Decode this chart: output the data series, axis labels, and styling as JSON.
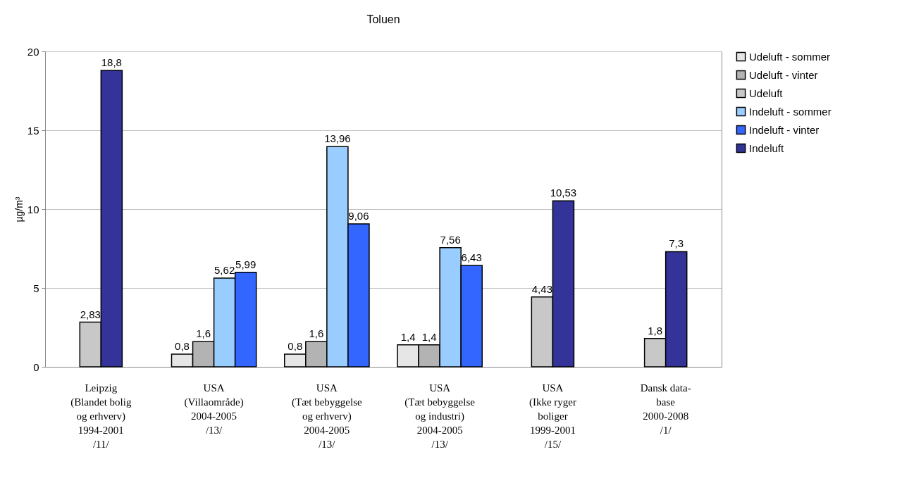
{
  "chart_data": {
    "type": "bar",
    "title": "Toluen",
    "ylabel": "µg/m³",
    "categories": [
      "Leipzig\n(Blandet bolig\nog erhverv)\n1994-2001\n/11/",
      "USA\n(Villaområde)\n2004-2005\n/13/",
      "USA\n(Tæt bebyggelse\nog erhverv)\n2004-2005\n/13/",
      "USA\n(Tæt bebyggelse\nog industri)\n2004-2005\n/13/",
      "USA\n(Ikke ryger\nboliger\n1999-2001\n/15/",
      "Dansk data-\nbase\n2000-2008\n/1/"
    ],
    "series": [
      {
        "name": "Udeluft - sommer",
        "color": "#e6e6e6",
        "values": [
          null,
          0.8,
          0.8,
          1.4,
          null,
          null
        ],
        "value_labels": [
          null,
          "0,8",
          "0,8",
          "1,4",
          null,
          null
        ]
      },
      {
        "name": "Udeluft - vinter",
        "color": "#b3b3b3",
        "values": [
          null,
          1.6,
          1.6,
          1.4,
          null,
          null
        ],
        "value_labels": [
          null,
          "1,6",
          "1,6",
          "1,4",
          null,
          null
        ]
      },
      {
        "name": "Udeluft",
        "color": "#c8c8c8",
        "values": [
          2.83,
          null,
          null,
          null,
          4.43,
          1.8
        ],
        "value_labels": [
          "2,83",
          null,
          null,
          null,
          "4,43",
          "1,8"
        ]
      },
      {
        "name": "Indeluft - sommer",
        "color": "#99ccff",
        "values": [
          null,
          5.62,
          13.96,
          7.56,
          null,
          null
        ],
        "value_labels": [
          null,
          "5,62",
          "13,96",
          "7,56",
          null,
          null
        ]
      },
      {
        "name": "Indeluft - vinter",
        "color": "#3366ff",
        "values": [
          null,
          5.99,
          9.06,
          6.43,
          null,
          null
        ],
        "value_labels": [
          null,
          "5,99",
          "9,06",
          "6,43",
          null,
          null
        ]
      },
      {
        "name": "Indeluft",
        "color": "#333399",
        "values": [
          18.8,
          null,
          null,
          null,
          10.53,
          7.3
        ],
        "value_labels": [
          "18,8",
          null,
          null,
          null,
          "10,53",
          "7,3"
        ]
      }
    ],
    "ylim": [
      0,
      20
    ],
    "yticks": [
      0,
      5,
      10,
      15,
      20
    ],
    "grid": "y",
    "legend": "right"
  }
}
